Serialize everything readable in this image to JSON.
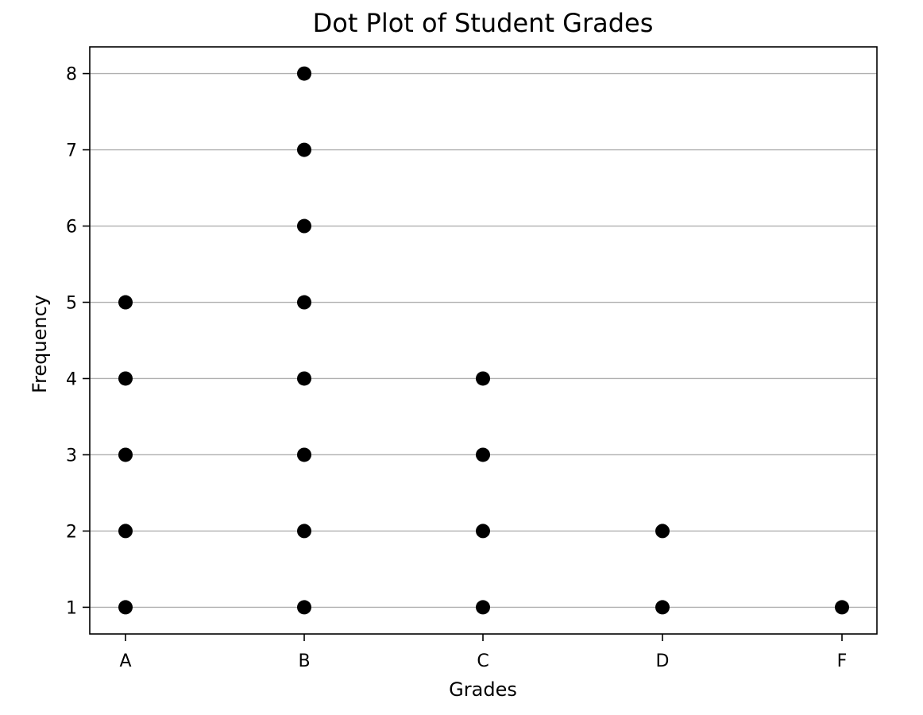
{
  "chart_data": {
    "type": "scatter",
    "title": "Dot Plot of Student Grades",
    "xlabel": "Grades",
    "ylabel": "Frequency",
    "categories": [
      "A",
      "B",
      "C",
      "D",
      "F"
    ],
    "counts": [
      5,
      8,
      4,
      2,
      1
    ],
    "points": [
      {
        "x": "A",
        "y": 1
      },
      {
        "x": "A",
        "y": 2
      },
      {
        "x": "A",
        "y": 3
      },
      {
        "x": "A",
        "y": 4
      },
      {
        "x": "A",
        "y": 5
      },
      {
        "x": "B",
        "y": 1
      },
      {
        "x": "B",
        "y": 2
      },
      {
        "x": "B",
        "y": 3
      },
      {
        "x": "B",
        "y": 4
      },
      {
        "x": "B",
        "y": 5
      },
      {
        "x": "B",
        "y": 6
      },
      {
        "x": "B",
        "y": 7
      },
      {
        "x": "B",
        "y": 8
      },
      {
        "x": "C",
        "y": 1
      },
      {
        "x": "C",
        "y": 2
      },
      {
        "x": "C",
        "y": 3
      },
      {
        "x": "C",
        "y": 4
      },
      {
        "x": "D",
        "y": 1
      },
      {
        "x": "D",
        "y": 2
      },
      {
        "x": "F",
        "y": 1
      }
    ],
    "ylim": [
      0.65,
      8.35
    ],
    "yticks": [
      1,
      2,
      3,
      4,
      5,
      6,
      7,
      8
    ],
    "grid": "horizontal",
    "colors": {
      "dot": "#000000",
      "grid": "#b0b0b0",
      "axes": "#000000"
    }
  }
}
